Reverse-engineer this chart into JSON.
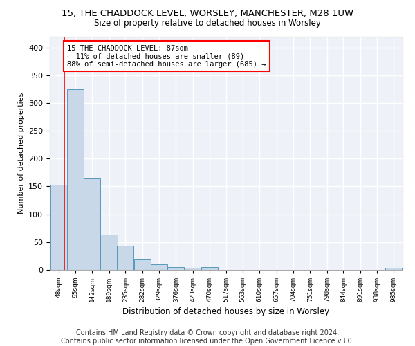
{
  "title": "15, THE CHADDOCK LEVEL, WORSLEY, MANCHESTER, M28 1UW",
  "subtitle": "Size of property relative to detached houses in Worsley",
  "xlabel": "Distribution of detached houses by size in Worsley",
  "ylabel": "Number of detached properties",
  "bar_color": "#c8d8e8",
  "bar_edge_color": "#5599bb",
  "bg_color": "#eef2f8",
  "grid_color": "#ffffff",
  "annotation_text": "15 THE CHADDOCK LEVEL: 87sqm\n← 11% of detached houses are smaller (89)\n88% of semi-detached houses are larger (685) →",
  "vline_x": 87,
  "property_size": 87,
  "categories": [
    "48sqm",
    "95sqm",
    "142sqm",
    "189sqm",
    "235sqm",
    "282sqm",
    "329sqm",
    "376sqm",
    "423sqm",
    "470sqm",
    "517sqm",
    "563sqm",
    "610sqm",
    "657sqm",
    "704sqm",
    "751sqm",
    "798sqm",
    "844sqm",
    "891sqm",
    "938sqm",
    "985sqm"
  ],
  "bin_edges": [
    48,
    95,
    142,
    189,
    235,
    282,
    329,
    376,
    423,
    470,
    517,
    563,
    610,
    657,
    704,
    751,
    798,
    844,
    891,
    938,
    985
  ],
  "bin_width": 47,
  "values": [
    153,
    325,
    165,
    64,
    43,
    20,
    10,
    5,
    4,
    5,
    0,
    0,
    0,
    0,
    0,
    0,
    0,
    0,
    0,
    0,
    4
  ],
  "ylim": [
    0,
    420
  ],
  "yticks": [
    0,
    50,
    100,
    150,
    200,
    250,
    300,
    350,
    400
  ],
  "footer": "Contains HM Land Registry data © Crown copyright and database right 2024.\nContains public sector information licensed under the Open Government Licence v3.0.",
  "footnote_fontsize": 7,
  "title_fontsize": 9.5,
  "subtitle_fontsize": 8.5
}
